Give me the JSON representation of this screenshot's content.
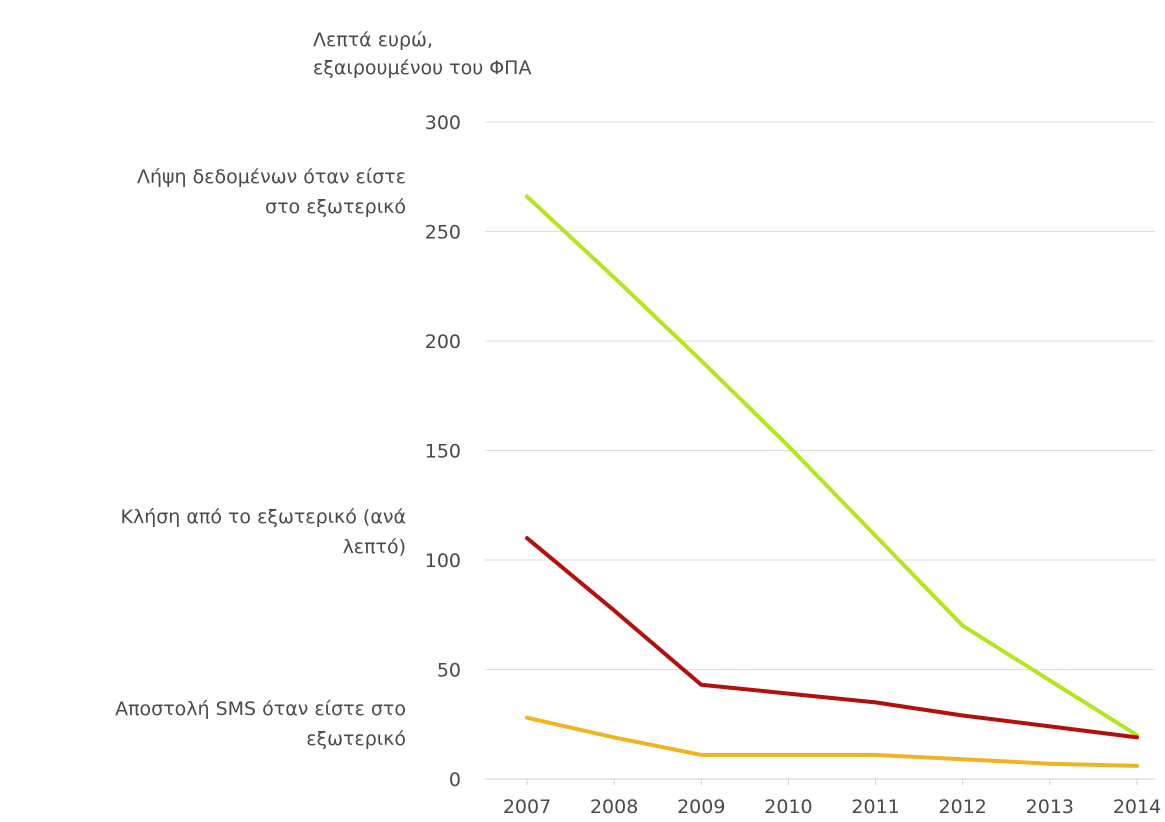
{
  "chart_data": {
    "type": "line",
    "ylabel": [
      "Λεπτά ευρώ,",
      "εξαιρουμένου του ΦΠΑ"
    ],
    "ylim": [
      0,
      300
    ],
    "yticks": [
      0,
      50,
      100,
      150,
      200,
      250,
      300
    ],
    "grid": true,
    "categories": [
      "2007",
      "2008",
      "2009",
      "2010",
      "2011",
      "2012",
      "2013",
      "2014"
    ],
    "series": [
      {
        "name": [
          "Λήψη δεδομένων όταν είστε",
          "στο εξωτερικό"
        ],
        "color": "#b5e61d",
        "values": [
          266,
          229,
          191,
          152,
          111,
          70,
          45,
          20
        ]
      },
      {
        "name": [
          "Κλήση από το εξωτερικό (ανά",
          "λεπτό)"
        ],
        "color": "#b30f0f",
        "values": [
          110,
          77,
          43,
          39,
          35,
          29,
          24,
          19
        ]
      },
      {
        "name": [
          "Αποστολή SMS όταν είστε στο",
          "εξωτερικό"
        ],
        "color": "#f0b323",
        "values": [
          28,
          19,
          11,
          11,
          11,
          9,
          7,
          6
        ]
      }
    ]
  }
}
